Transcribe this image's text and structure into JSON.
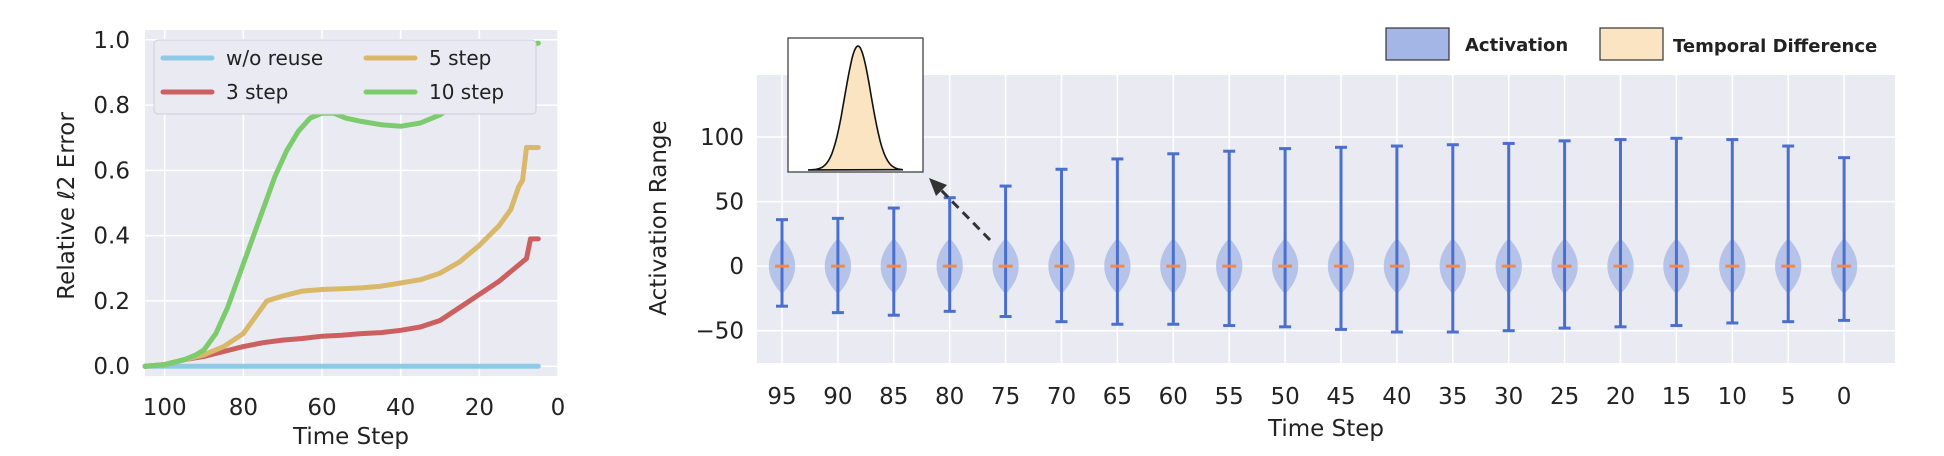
{
  "colors": {
    "panel_bg": "#eaeaf2",
    "grid": "#ffffff",
    "violin_fill": "#a4b6e6",
    "violin_line": "#4a6fcf",
    "median": "#f08a4a",
    "td_fill": "#fbe4c2"
  },
  "chart_data": [
    {
      "type": "line",
      "title": "",
      "xlabel": "Time Step",
      "ylabel": "Relative ℓ2 Error",
      "xlim": [
        105,
        0
      ],
      "ylim": [
        -0.03,
        1.03
      ],
      "xticks": [
        "100",
        "80",
        "60",
        "40",
        "20",
        "0"
      ],
      "yticks": [
        "0.0",
        "0.2",
        "0.4",
        "0.6",
        "0.8",
        "1.0"
      ],
      "grid": true,
      "legend": "top-left, two columns",
      "series": [
        {
          "name": "w/o reuse",
          "color": "#8ecae6",
          "points": [
            [
              105,
              0
            ],
            [
              95,
              0
            ],
            [
              85,
              0
            ],
            [
              75,
              0
            ],
            [
              65,
              0
            ],
            [
              55,
              0
            ],
            [
              45,
              0
            ],
            [
              35,
              0
            ],
            [
              25,
              0
            ],
            [
              15,
              0
            ],
            [
              5,
              0
            ]
          ]
        },
        {
          "name": "3 step",
          "color": "#cc6060",
          "points": [
            [
              105,
              0
            ],
            [
              100,
              0.005
            ],
            [
              95,
              0.02
            ],
            [
              90,
              0.03
            ],
            [
              85,
              0.045
            ],
            [
              80,
              0.06
            ],
            [
              75,
              0.072
            ],
            [
              70,
              0.08
            ],
            [
              65,
              0.085
            ],
            [
              60,
              0.092
            ],
            [
              55,
              0.095
            ],
            [
              50,
              0.1
            ],
            [
              45,
              0.103
            ],
            [
              40,
              0.11
            ],
            [
              35,
              0.12
            ],
            [
              30,
              0.14
            ],
            [
              25,
              0.18
            ],
            [
              20,
              0.22
            ],
            [
              15,
              0.26
            ],
            [
              12,
              0.29
            ],
            [
              10,
              0.31
            ],
            [
              8,
              0.33
            ],
            [
              7,
              0.39
            ],
            [
              5,
              0.39
            ]
          ]
        },
        {
          "name": "5 step",
          "color": "#d9b86a",
          "points": [
            [
              105,
              0
            ],
            [
              100,
              0.005
            ],
            [
              95,
              0.02
            ],
            [
              90,
              0.035
            ],
            [
              85,
              0.06
            ],
            [
              80,
              0.1
            ],
            [
              77,
              0.15
            ],
            [
              74,
              0.2
            ],
            [
              70,
              0.215
            ],
            [
              65,
              0.23
            ],
            [
              60,
              0.235
            ],
            [
              55,
              0.237
            ],
            [
              50,
              0.24
            ],
            [
              45,
              0.245
            ],
            [
              40,
              0.255
            ],
            [
              35,
              0.265
            ],
            [
              30,
              0.285
            ],
            [
              25,
              0.32
            ],
            [
              20,
              0.37
            ],
            [
              15,
              0.43
            ],
            [
              12,
              0.48
            ],
            [
              10,
              0.55
            ],
            [
              9,
              0.57
            ],
            [
              8,
              0.67
            ],
            [
              5,
              0.67
            ]
          ]
        },
        {
          "name": "10 step",
          "color": "#7ccc6e",
          "points": [
            [
              105,
              0
            ],
            [
              100,
              0.005
            ],
            [
              95,
              0.02
            ],
            [
              92,
              0.035
            ],
            [
              90,
              0.05
            ],
            [
              87,
              0.1
            ],
            [
              84,
              0.18
            ],
            [
              81,
              0.28
            ],
            [
              78,
              0.38
            ],
            [
              75,
              0.48
            ],
            [
              72,
              0.58
            ],
            [
              69,
              0.66
            ],
            [
              66,
              0.72
            ],
            [
              63,
              0.76
            ],
            [
              60,
              0.775
            ],
            [
              57,
              0.775
            ],
            [
              54,
              0.76
            ],
            [
              50,
              0.75
            ],
            [
              45,
              0.74
            ],
            [
              40,
              0.735
            ],
            [
              35,
              0.745
            ],
            [
              30,
              0.77
            ],
            [
              25,
              0.81
            ],
            [
              20,
              0.86
            ],
            [
              15,
              0.91
            ],
            [
              10,
              0.96
            ],
            [
              8,
              0.98
            ],
            [
              5,
              0.99
            ]
          ]
        }
      ]
    },
    {
      "type": "violin",
      "title": "",
      "xlabel": "Time Step",
      "ylabel": "Activation Range",
      "ylim": [
        -75,
        148
      ],
      "yticks": [
        "−50",
        "0",
        "50",
        "100"
      ],
      "grid": true,
      "legend": "top-right",
      "legend_entries": [
        "Activation",
        "Temporal Difference"
      ],
      "categories": [
        "95",
        "90",
        "85",
        "80",
        "75",
        "70",
        "65",
        "60",
        "55",
        "50",
        "45",
        "40",
        "35",
        "30",
        "25",
        "20",
        "15",
        "10",
        "5",
        "0"
      ],
      "min": [
        -31,
        -36,
        -38,
        -35,
        -39,
        -43,
        -45,
        -45,
        -46,
        -47,
        -49,
        -51,
        -51,
        -50,
        -48,
        -47,
        -46,
        -44,
        -43,
        -42
      ],
      "max": [
        36,
        37,
        45,
        53,
        62,
        75,
        83,
        87,
        89,
        91,
        92,
        93,
        94,
        95,
        97,
        98,
        99,
        98,
        93,
        84
      ],
      "median": [
        0,
        0,
        0,
        0,
        0,
        0,
        0,
        0,
        0,
        0,
        0,
        0,
        0,
        0,
        0,
        0,
        0,
        0,
        0,
        0
      ]
    }
  ]
}
